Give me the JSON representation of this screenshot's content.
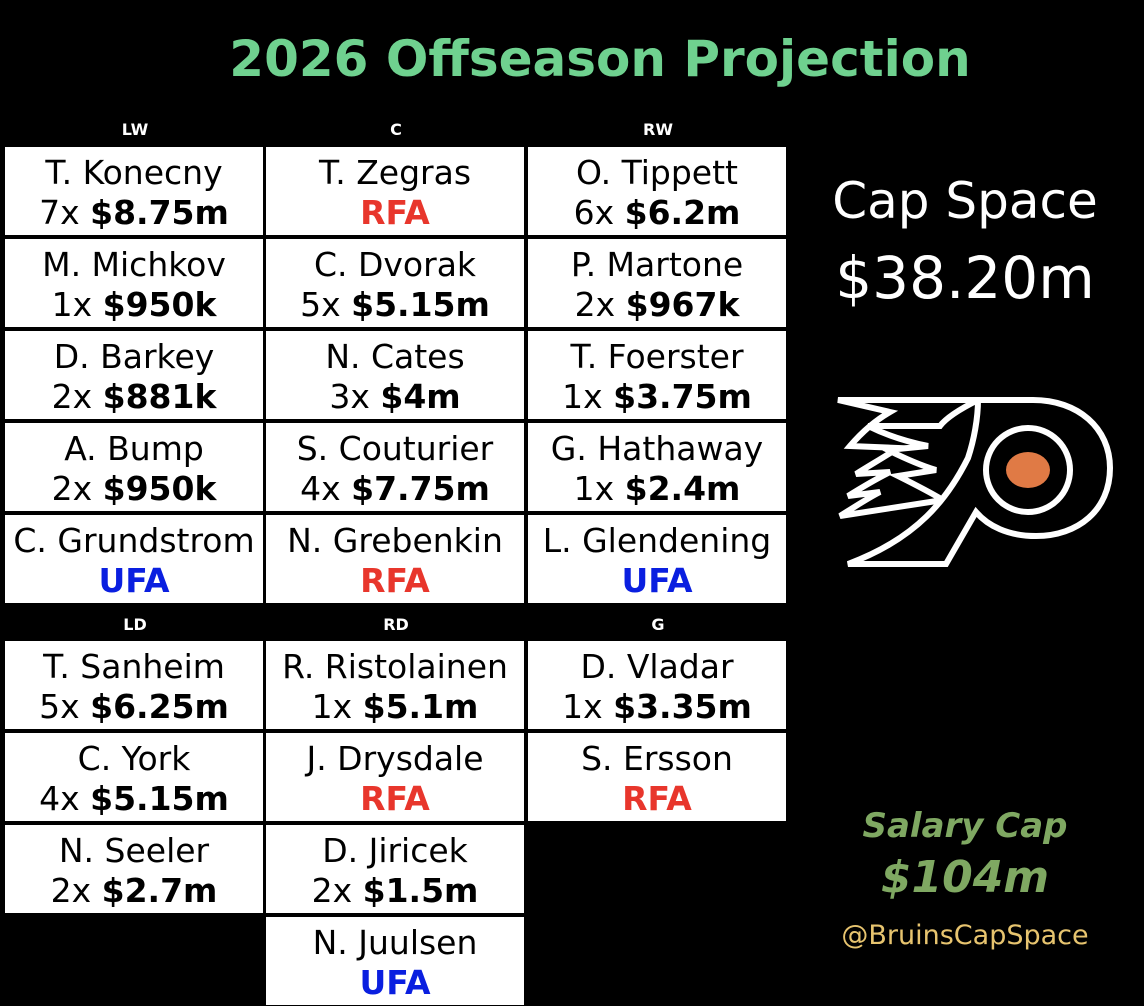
{
  "title": "2026 Offseason Projection",
  "forwards": {
    "headers": [
      "LW",
      "C",
      "RW"
    ],
    "rows": [
      [
        {
          "name": "T. Konecny",
          "years": "7x",
          "amount": "$8.75m"
        },
        {
          "name": "T. Zegras",
          "status": "RFA"
        },
        {
          "name": "O. Tippett",
          "years": "6x",
          "amount": "$6.2m"
        }
      ],
      [
        {
          "name": "M. Michkov",
          "years": "1x",
          "amount": "$950k"
        },
        {
          "name": "C. Dvorak",
          "years": "5x",
          "amount": "$5.15m"
        },
        {
          "name": "P. Martone",
          "years": "2x",
          "amount": "$967k"
        }
      ],
      [
        {
          "name": "D. Barkey",
          "years": "2x",
          "amount": "$881k"
        },
        {
          "name": "N. Cates",
          "years": "3x",
          "amount": "$4m"
        },
        {
          "name": "T. Foerster",
          "years": "1x",
          "amount": "$3.75m"
        }
      ],
      [
        {
          "name": "A. Bump",
          "years": "2x",
          "amount": "$950k"
        },
        {
          "name": "S. Couturier",
          "years": "4x",
          "amount": "$7.75m"
        },
        {
          "name": "G. Hathaway",
          "years": "1x",
          "amount": "$2.4m"
        }
      ],
      [
        {
          "name": "C. Grundstrom",
          "status": "UFA"
        },
        {
          "name": "N. Grebenkin",
          "status": "RFA"
        },
        {
          "name": "L. Glendening",
          "status": "UFA"
        }
      ]
    ]
  },
  "defense": {
    "headers": [
      "LD",
      "RD",
      "G"
    ],
    "ld": [
      {
        "name": "T. Sanheim",
        "years": "5x",
        "amount": "$6.25m"
      },
      {
        "name": "C. York",
        "years": "4x",
        "amount": "$5.15m"
      },
      {
        "name": "N. Seeler",
        "years": "2x",
        "amount": "$2.7m"
      }
    ],
    "rd": [
      {
        "name": "R. Ristolainen",
        "years": "1x",
        "amount": "$5.1m"
      },
      {
        "name": "J. Drysdale",
        "status": "RFA"
      },
      {
        "name": "D. Jiricek",
        "years": "2x",
        "amount": "$1.5m"
      },
      {
        "name": "N. Juulsen",
        "status": "UFA"
      }
    ],
    "g": [
      {
        "name": "D. Vladar",
        "years": "1x",
        "amount": "$3.35m"
      },
      {
        "name": "S. Ersson",
        "status": "RFA"
      }
    ]
  },
  "cap_space": {
    "label": "Cap Space",
    "value": "$38.20m"
  },
  "salary_cap": {
    "label": "Salary Cap",
    "value": "$104m"
  },
  "handle": "@BruinsCapSpace",
  "logo": {
    "icon": "flyers-logo-icon",
    "accent": "#e07a45"
  },
  "colors": {
    "title": "#6fd18f",
    "rfa": "#e8362c",
    "ufa": "#0a1fe0",
    "salary": "#7fa862",
    "handle": "#e7c46f"
  }
}
